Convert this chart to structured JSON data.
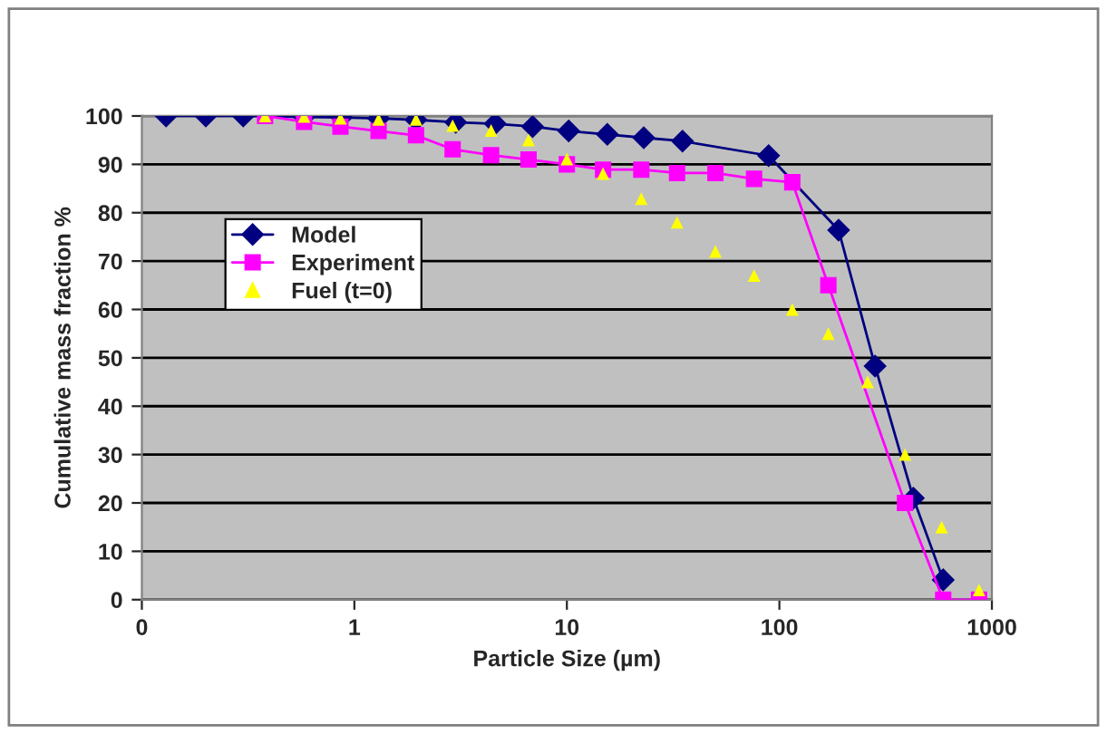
{
  "chart_data": {
    "type": "line",
    "xlabel": "Particle Size (µm)",
    "ylabel": "Cumulative mass fraction %",
    "log": "x",
    "xlim": [
      0.1,
      1000
    ],
    "xticks": [
      {
        "value": 0.1,
        "label": "0"
      },
      1,
      10,
      100,
      1000
    ],
    "ylim": [
      0,
      100
    ],
    "yticks": [
      0,
      10,
      20,
      30,
      40,
      50,
      60,
      70,
      80,
      90,
      100
    ],
    "grid": "y",
    "legend": "top left",
    "series": [
      {
        "name": "Model",
        "color": "#000080",
        "marker": "diamond",
        "line_style": "solid",
        "x": [
          0.13,
          0.2,
          0.3,
          0.58,
          0.87,
          1.3,
          1.95,
          3,
          4.6,
          6.9,
          10.2,
          15.5,
          23,
          35,
          89,
          190,
          282,
          427,
          590
        ],
        "values": [
          100,
          100,
          100,
          99.8,
          99.7,
          99.5,
          99.2,
          98.7,
          98.4,
          97.8,
          96.9,
          96.2,
          95.5,
          94.8,
          91.8,
          76.4,
          48.3,
          21,
          4.1
        ]
      },
      {
        "name": "Experiment",
        "color": "#ff00ff",
        "marker": "square",
        "line_style": "solid",
        "x": [
          0.38,
          0.58,
          0.86,
          1.3,
          1.95,
          2.9,
          4.4,
          6.6,
          10,
          14.8,
          22.4,
          33,
          50,
          76,
          115,
          170,
          390,
          590,
          870
        ],
        "values": [
          100,
          98.8,
          97.8,
          96.9,
          96,
          93.1,
          91.9,
          91,
          90,
          88.9,
          88.9,
          88.2,
          88.2,
          87,
          86.3,
          65,
          20,
          0,
          0
        ]
      },
      {
        "name": "Fuel (t=0)",
        "type": "scatter",
        "color": "#ffff00",
        "marker": "triangle",
        "x": [
          0.38,
          0.58,
          0.86,
          1.3,
          1.95,
          2.9,
          4.4,
          6.6,
          10,
          14.8,
          22.4,
          33,
          50,
          76,
          115,
          170,
          260,
          390,
          580,
          870
        ],
        "values": [
          100,
          99.9,
          99.5,
          99.3,
          99.3,
          98,
          97,
          95,
          91.1,
          88.1,
          82.9,
          78,
          72,
          67,
          60,
          55,
          45,
          30,
          15,
          2
        ]
      }
    ]
  }
}
